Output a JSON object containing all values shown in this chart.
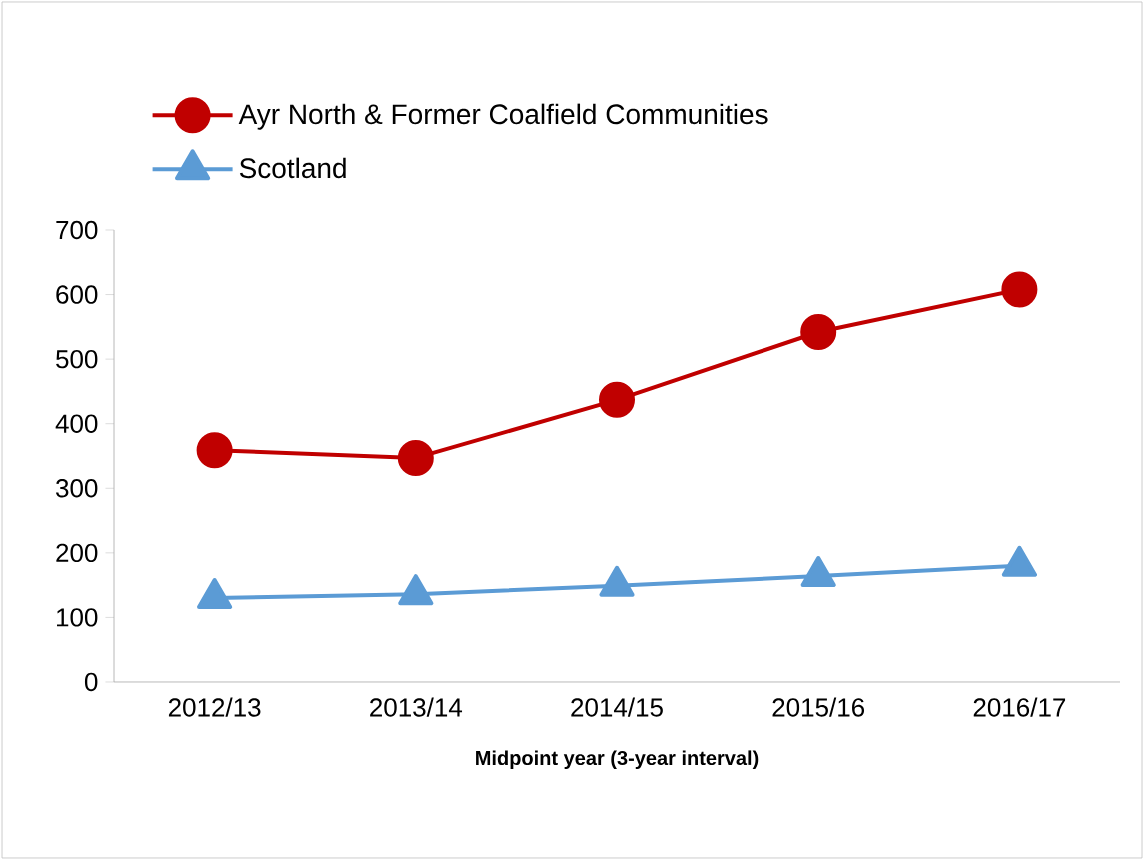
{
  "chart_data": {
    "type": "line",
    "xlabel": "Midpoint year (3-year interval)",
    "categories": [
      "2012/13",
      "2013/14",
      "2014/15",
      "2015/16",
      "2016/17"
    ],
    "series": [
      {
        "name": "Ayr North & Former Coalfield Communities",
        "color": "#c00000",
        "marker": "circle",
        "values": [
          359,
          347,
          437,
          542,
          608
        ]
      },
      {
        "name": "Scotland",
        "color": "#5b9bd5",
        "marker": "triangle",
        "values": [
          130,
          136,
          149,
          164,
          180
        ]
      }
    ],
    "ylim": [
      0,
      700
    ],
    "yticks": [
      0,
      100,
      200,
      300,
      400,
      500,
      600,
      700
    ],
    "grid": false,
    "legend": "top",
    "line_style": "solid"
  }
}
